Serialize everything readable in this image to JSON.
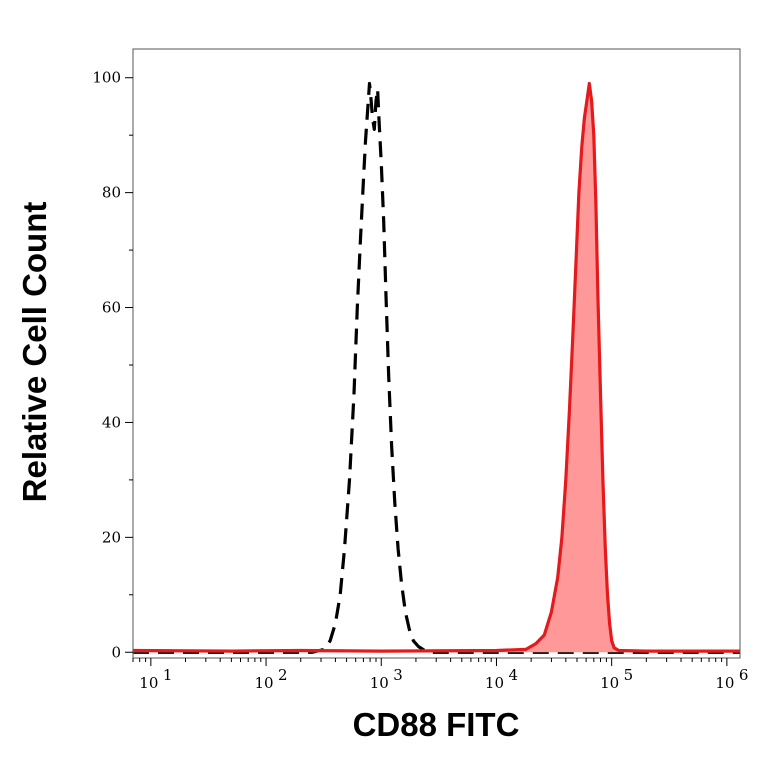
{
  "chart_data": {
    "type": "area",
    "xlabel": "CD88 FITC",
    "ylabel": "Relative Cell Count",
    "x_scale": "log",
    "xlim": [
      7,
      1300000
    ],
    "ylim": [
      -1,
      105
    ],
    "x_ticks": [
      {
        "value": 10,
        "base": "10",
        "exp": "1"
      },
      {
        "value": 100,
        "base": "10",
        "exp": "2"
      },
      {
        "value": 1000,
        "base": "10",
        "exp": "3"
      },
      {
        "value": 10000,
        "base": "10",
        "exp": "4"
      },
      {
        "value": 100000,
        "base": "10",
        "exp": "5"
      },
      {
        "value": 1000000,
        "base": "10",
        "exp": "6"
      }
    ],
    "y_ticks": [
      0,
      20,
      40,
      60,
      80,
      100
    ],
    "grid": false,
    "series": [
      {
        "style": "dashed",
        "color": "#000000",
        "fill": "none",
        "x": [
          7,
          20,
          60,
          150,
          250,
          320,
          360,
          400,
          440,
          480,
          530,
          580,
          620,
          660,
          700,
          730,
          760,
          790,
          810,
          840,
          870,
          900,
          930,
          960,
          1000,
          1050,
          1100,
          1160,
          1230,
          1310,
          1400,
          1500,
          1620,
          1750,
          1900,
          2100,
          2300,
          2600,
          3000,
          5000,
          100000,
          1300000
        ],
        "y": [
          0,
          0,
          0,
          0,
          0,
          0.5,
          2,
          5,
          10,
          18,
          30,
          45,
          60,
          72,
          82,
          89,
          94,
          99,
          97,
          93,
          91,
          96,
          98,
          92,
          85,
          75,
          62,
          48,
          36,
          26,
          18,
          12,
          7,
          4,
          2,
          1,
          0.5,
          0,
          0,
          0,
          0,
          0
        ]
      },
      {
        "style": "solid",
        "color": "#e41a1c",
        "fill": "#ff9999",
        "x": [
          7,
          50,
          200,
          1000,
          10000,
          18000,
          22000,
          26000,
          30000,
          34000,
          37000,
          40000,
          43000,
          46000,
          49000,
          52000,
          55000,
          58000,
          61000,
          64000,
          67000,
          70000,
          73000,
          76000,
          80000,
          84000,
          88000,
          92000,
          96000,
          100000,
          105000,
          115000,
          200000,
          1300000
        ],
        "y": [
          0.3,
          0.2,
          0.3,
          0.2,
          0.3,
          0.5,
          1.5,
          3,
          7,
          13,
          20,
          30,
          42,
          55,
          68,
          80,
          88,
          93,
          96,
          99,
          96,
          90,
          78,
          62,
          45,
          30,
          18,
          10,
          5,
          2,
          0.8,
          0.3,
          0.2,
          0.2
        ]
      }
    ]
  }
}
